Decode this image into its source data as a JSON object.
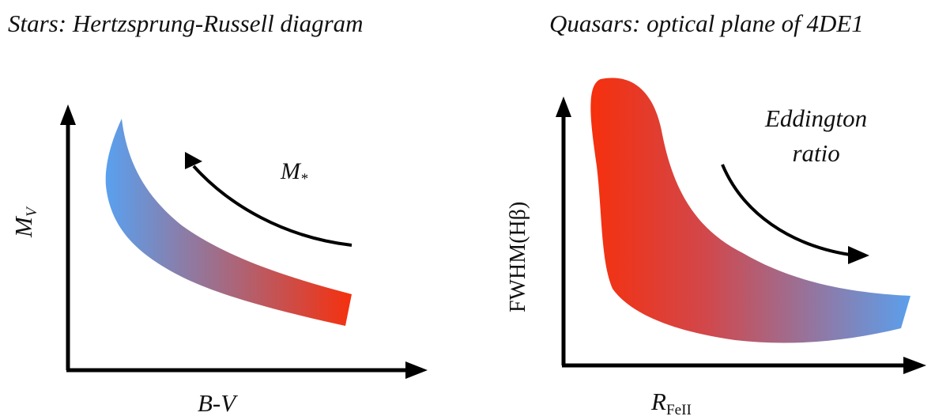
{
  "left": {
    "title": "Stars: Hertzsprung-Russell diagram",
    "y_axis": {
      "main": "M",
      "sub": "V"
    },
    "x_axis": "B-V",
    "arrow_label": {
      "main": "M",
      "sub": "*"
    },
    "gradient": {
      "start": "#5aa0ee",
      "end": "#f5300e"
    }
  },
  "right": {
    "title": "Quasars: optical plane of 4DE1",
    "y_axis": "FWHM(Hβ)",
    "x_axis": {
      "main": "R",
      "sub": "FeII"
    },
    "arrow_label_lines": [
      "Eddington",
      "ratio"
    ],
    "gradient": {
      "start": "#f5300e",
      "end": "#5aa0ee"
    }
  }
}
